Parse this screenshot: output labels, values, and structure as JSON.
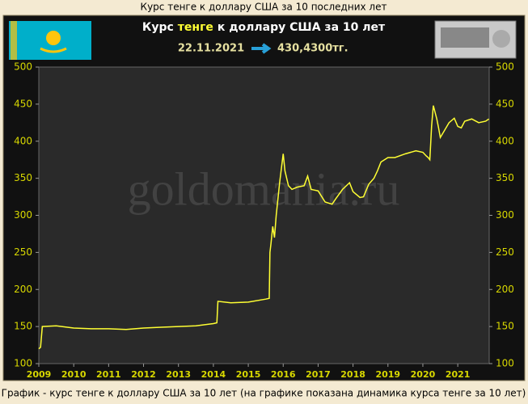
{
  "page_title": "Курс тенге к доллару США за 10 последних лет",
  "footer": "График - курс тенге к доллару США за 10 лет (на графике показана динамика курса тенге за 10 лет)",
  "chart_data": {
    "type": "line",
    "title_parts": [
      "Курс",
      "тенге",
      "к доллару США за 10 лет"
    ],
    "date": "22.11.2021",
    "rate": "430,4300тг.",
    "watermark": "goldomania.ru",
    "color": "#ffff33",
    "x": [
      2009.0,
      2009.05,
      2009.1,
      2009.5,
      2010,
      2010.5,
      2011,
      2011.5,
      2012,
      2012.5,
      2013,
      2013.5,
      2014.0,
      2014.1,
      2014.13,
      2014.5,
      2015,
      2015.5,
      2015.6,
      2015.62,
      2015.65,
      2015.7,
      2015.75,
      2015.8,
      2015.9,
      2016.0,
      2016.05,
      2016.15,
      2016.25,
      2016.4,
      2016.6,
      2016.7,
      2016.8,
      2016.9,
      2017.0,
      2017.2,
      2017.4,
      2017.5,
      2017.7,
      2017.9,
      2018.0,
      2018.2,
      2018.3,
      2018.45,
      2018.6,
      2018.7,
      2018.8,
      2019.0,
      2019.2,
      2019.5,
      2019.8,
      2020.0,
      2020.1,
      2020.15,
      2020.2,
      2020.25,
      2020.3,
      2020.4,
      2020.45,
      2020.5,
      2020.6,
      2020.75,
      2020.9,
      2021.0,
      2021.1,
      2021.2,
      2021.4,
      2021.6,
      2021.8,
      2021.89
    ],
    "values": [
      120,
      122,
      150,
      151,
      148,
      147,
      147,
      146,
      148,
      149,
      150,
      151,
      154,
      155,
      184,
      182,
      183,
      187,
      188,
      250,
      262,
      285,
      270,
      300,
      345,
      383,
      360,
      340,
      335,
      338,
      340,
      353,
      335,
      334,
      333,
      318,
      315,
      322,
      335,
      344,
      332,
      324,
      325,
      342,
      350,
      360,
      372,
      378,
      378,
      383,
      387,
      385,
      380,
      378,
      375,
      420,
      448,
      430,
      418,
      405,
      413,
      425,
      431,
      420,
      418,
      427,
      430,
      425,
      427,
      430
    ],
    "xlim": [
      2009,
      2021.9
    ],
    "xticks": [
      2009,
      2010,
      2011,
      2012,
      2013,
      2014,
      2015,
      2016,
      2017,
      2018,
      2019,
      2020,
      2021
    ],
    "ylim": [
      100,
      500
    ],
    "yticks": [
      100,
      150,
      200,
      250,
      300,
      350,
      400,
      450,
      500
    ]
  }
}
